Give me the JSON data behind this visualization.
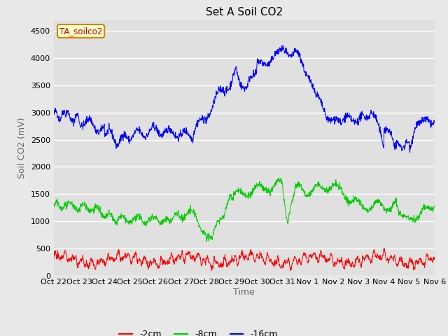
{
  "title": "Set A Soil CO2",
  "ylabel": "Soil CO2 (mV)",
  "xlabel": "Time",
  "legend_label": "TA_soilco2",
  "series_labels": [
    "-2cm",
    "-8cm",
    "-16cm"
  ],
  "series_colors": [
    "#ff0000",
    "#00cc00",
    "#0000ff"
  ],
  "fig_facecolor": "#e8e8e8",
  "plot_bg_color": "#e0e0e0",
  "ylim": [
    0,
    4700
  ],
  "yticks": [
    0,
    500,
    1000,
    1500,
    2000,
    2500,
    3000,
    3500,
    4000,
    4500
  ],
  "xtick_labels": [
    "Oct 22",
    "Oct 23",
    "Oct 24",
    "Oct 25",
    "Oct 26",
    "Oct 27",
    "Oct 28",
    "Oct 29",
    "Oct 30",
    "Oct 31",
    "Nov 1",
    "Nov 2",
    "Nov 3",
    "Nov 4",
    "Nov 5",
    "Nov 6"
  ],
  "title_fontsize": 11,
  "axis_label_fontsize": 9,
  "tick_fontsize": 8,
  "legend_fontsize": 9,
  "n_days": 15,
  "seed": 42
}
